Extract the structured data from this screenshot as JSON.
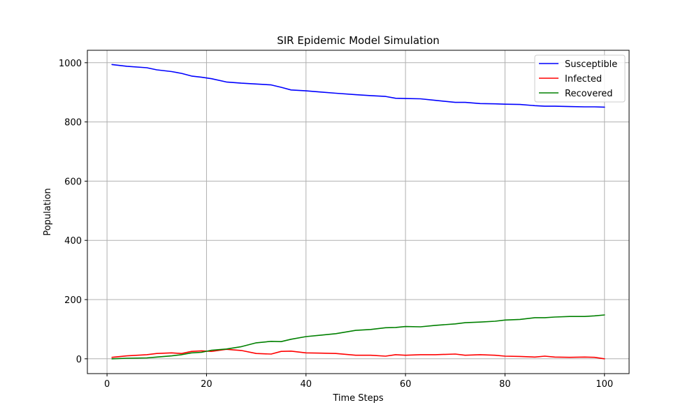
{
  "chart_data": {
    "type": "line",
    "title": "SIR Epidemic Model Simulation",
    "xlabel": "Time Steps",
    "ylabel": "Population",
    "xlim": [
      -3.95,
      104.95
    ],
    "ylim": [
      -50,
      1042
    ],
    "x_ticks": [
      0,
      20,
      40,
      60,
      80,
      100
    ],
    "y_ticks": [
      0,
      200,
      400,
      600,
      800,
      1000
    ],
    "grid": true,
    "legend_position": "top-right",
    "x": [
      1,
      4,
      8,
      10,
      13,
      15,
      17,
      19,
      21,
      24,
      27,
      30,
      33,
      35,
      37,
      40,
      43,
      46,
      50,
      53,
      56,
      58,
      60,
      63,
      66,
      70,
      72,
      75,
      78,
      80,
      83,
      86,
      88,
      90,
      93,
      96,
      98,
      100
    ],
    "series": [
      {
        "name": "Susceptible",
        "color": "#0000ff",
        "values": [
          994,
          988,
          983,
          976,
          970,
          964,
          955,
          951,
          946,
          935,
          931,
          928,
          925,
          917,
          908,
          905,
          901,
          897,
          892,
          889,
          886,
          880,
          879,
          878,
          873,
          866,
          866,
          862,
          861,
          860,
          859,
          855,
          853,
          853,
          852,
          851,
          851,
          850
        ]
      },
      {
        "name": "Infected",
        "color": "#ff0000",
        "values": [
          5,
          10,
          14,
          18,
          20,
          18,
          25,
          27,
          25,
          32,
          28,
          18,
          16,
          25,
          26,
          20,
          19,
          18,
          12,
          12,
          9,
          14,
          12,
          14,
          14,
          16,
          12,
          14,
          12,
          9,
          8,
          6,
          9,
          6,
          5,
          6,
          5,
          0
        ]
      },
      {
        "name": "Recovered",
        "color": "#008000",
        "values": [
          0,
          2,
          3,
          6,
          10,
          14,
          20,
          22,
          29,
          33,
          41,
          54,
          59,
          58,
          66,
          75,
          80,
          85,
          96,
          99,
          105,
          106,
          109,
          108,
          113,
          118,
          122,
          124,
          127,
          131,
          133,
          139,
          139,
          141,
          143,
          143,
          145,
          148
        ]
      }
    ]
  }
}
